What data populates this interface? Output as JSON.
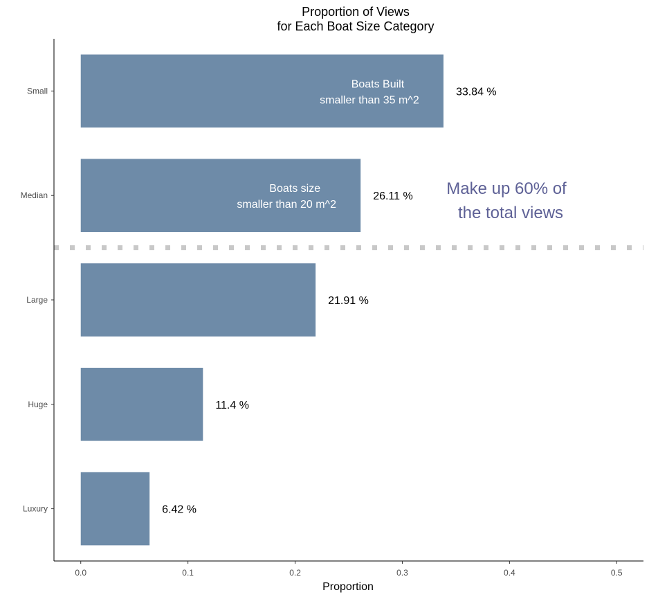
{
  "chart_data": {
    "type": "bar",
    "orientation": "horizontal",
    "title": [
      "Proportion of Views",
      "for Each Boat Size Category"
    ],
    "xlabel": "Proportion",
    "ylabel": "",
    "categories": [
      "Small",
      "Median",
      "Large",
      "Huge",
      "Luxury"
    ],
    "values": [
      0.3384,
      0.2611,
      0.2191,
      0.114,
      0.0642
    ],
    "value_labels": [
      "33.84 %",
      "26.11 %",
      "21.91 %",
      "11.4 %",
      "6.42 %"
    ],
    "xlim": [
      -0.025,
      0.525
    ],
    "xticks": [
      0,
      0.1,
      0.2,
      0.3,
      0.4,
      0.5
    ],
    "xtick_labels": [
      "0.0",
      "0.1",
      "0.2",
      "0.3",
      "0.4",
      "0.5"
    ],
    "bar_color": "#6e8ba8",
    "grid": false,
    "annotations": [
      {
        "category": "Small",
        "lines": [
          "Boats Built",
          "smaller than 35 m^2"
        ]
      },
      {
        "category": "Median",
        "lines": [
          "Boats size",
          "smaller than 20 m^2"
        ]
      }
    ],
    "callout": {
      "lines": [
        "Make up 60% of",
        "the total views"
      ],
      "color": "#5e6196"
    },
    "separator": {
      "between": [
        "Median",
        "Large"
      ],
      "style": "dotted",
      "color": "#c8c8c8"
    }
  }
}
